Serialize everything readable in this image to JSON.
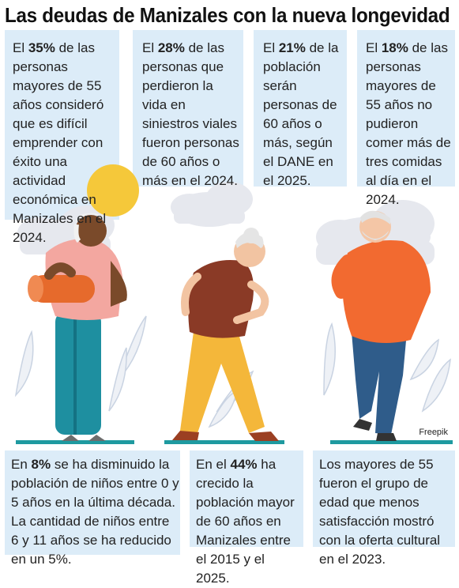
{
  "title": "Las deudas de Manizales con la nueva longevidad",
  "top_stats": [
    {
      "pre": "El ",
      "pct": "35%",
      "text": " de las personas mayores de 55 años consideró que es difícil emprender con éxito una actividad económica en Manizales en el 2024."
    },
    {
      "pre": "El ",
      "pct": "28%",
      "text": " de las personas que perdieron la vida en siniestros viales fueron personas de 60 años o más en el 2024."
    },
    {
      "pre": "El ",
      "pct": "21%",
      "text": " de la población serán personas de 60 años o más, según el DANE en el 2025."
    },
    {
      "pre": "El ",
      "pct": "18%",
      "text": " de las personas mayores de 55 años no pudieron comer más de tres comidas al día en el 2024."
    }
  ],
  "bottom_stats": [
    {
      "pre": "En ",
      "pct": "8%",
      "text": " se ha disminuido la población de niños entre 0 y 5 años en la última década. La cantidad de niños entre 6 y 11 años se ha reducido en un 5%."
    },
    {
      "pre": "En el ",
      "pct": "44%",
      "text": " ha crecido la población mayor de 60 años en Manizales entre el 2015 y el 2025."
    },
    {
      "pre": "",
      "pct": "",
      "text": "Los mayores de 55 fueron el grupo de edad que menos satisfacción mostró con la oferta cultural en el 2023."
    }
  ],
  "credit": "Freepik",
  "colors": {
    "box": "#dcecf8",
    "sun": "#f5c83a",
    "floor": "#1e9aa0"
  }
}
